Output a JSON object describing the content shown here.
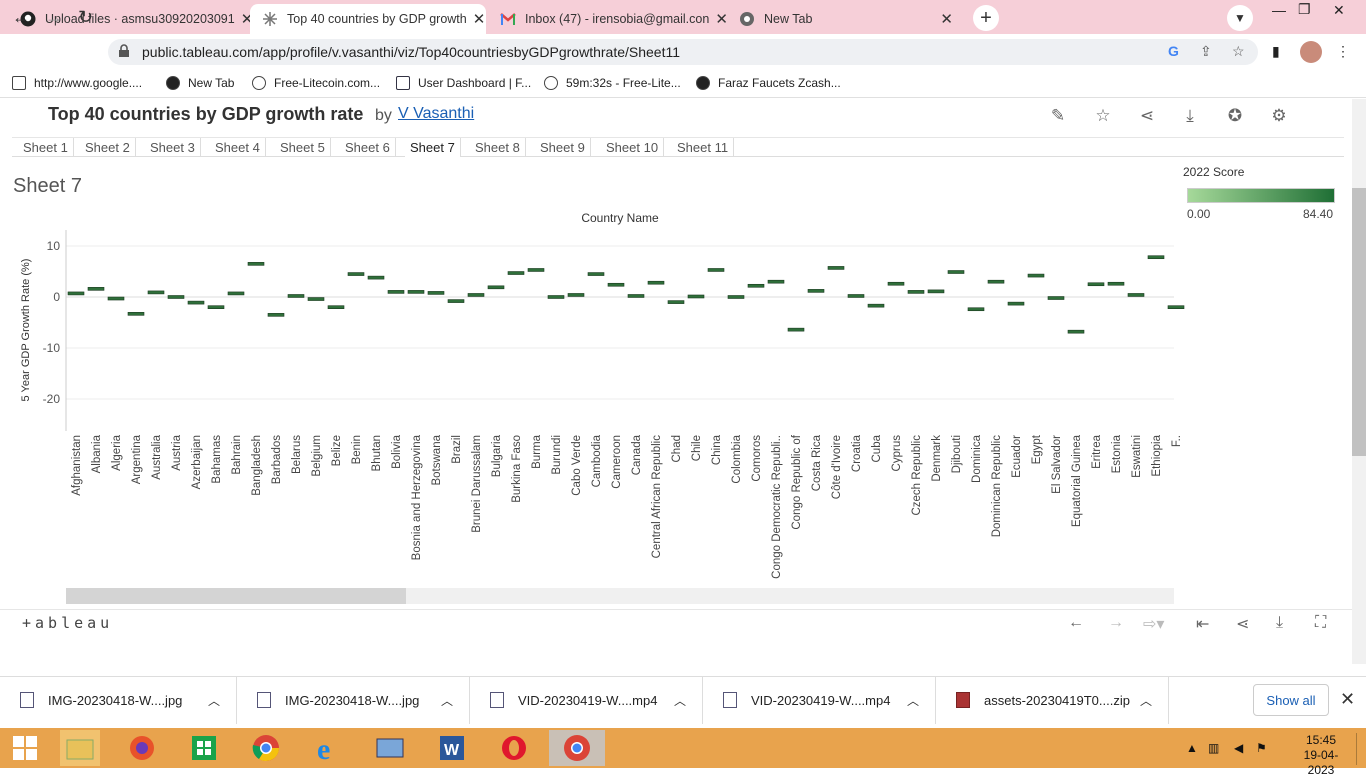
{
  "browser": {
    "tabs": [
      {
        "title": "Upload files · asmsu30920203091",
        "icon": "github-icon",
        "active": false
      },
      {
        "title": "Top 40 countries by GDP growth",
        "icon": "tableau-icon",
        "active": true
      },
      {
        "title": "Inbox (47) - irensobia@gmail.con",
        "icon": "gmail-icon",
        "active": false
      },
      {
        "title": "New Tab",
        "icon": "chrome-icon",
        "active": false
      }
    ],
    "new_tab_symbol": "+",
    "url": "public.tableau.com/app/profile/v.vasanthi/viz/Top40countriesbyGDPgrowthrate/Sheet11",
    "bookmarks": [
      "http://www.google....",
      "New Tab",
      "Free-Litecoin.com...",
      "User Dashboard | F...",
      "59m:32s - Free-Lite...",
      "Faraz Faucets Zcash..."
    ]
  },
  "viz": {
    "title": "Top 40 countries by GDP growth rate",
    "by": "by",
    "author": "V Vasanthi",
    "sheet_tabs": [
      "Sheet 1",
      "Sheet 2",
      "Sheet 3",
      "Sheet 4",
      "Sheet 5",
      "Sheet 6",
      "Sheet 7",
      "Sheet 8",
      "Sheet 9",
      "Sheet 10",
      "Sheet 11"
    ],
    "active_sheet": "Sheet 7",
    "sheet_name": "Sheet 7",
    "legend": {
      "title": "2022 Score",
      "min": "0.00",
      "max": "84.40",
      "color_low": "#a6d99a",
      "color_high": "#1f6f35"
    },
    "logo": "+ableau"
  },
  "chart_data": {
    "type": "scatter",
    "mark": "dash",
    "title": "",
    "xlabel": "Country Name",
    "ylabel": "5 Year GDP Growth Rate (%)",
    "ylim": [
      -25,
      12
    ],
    "yticks": [
      10,
      0,
      -10,
      -20
    ],
    "grid": true,
    "categories": [
      "Afghanistan",
      "Albania",
      "Algeria",
      "Argentina",
      "Australia",
      "Austria",
      "Azerbaijan",
      "Bahamas",
      "Bahrain",
      "Bangladesh",
      "Barbados",
      "Belarus",
      "Belgium",
      "Belize",
      "Benin",
      "Bhutan",
      "Bolivia",
      "Bosnia and Herzegovina",
      "Botswana",
      "Brazil",
      "Brunei Darussalam",
      "Bulgaria",
      "Burkina Faso",
      "Burma",
      "Burundi",
      "Cabo Verde",
      "Cambodia",
      "Cameroon",
      "Canada",
      "Central African Republic",
      "Chad",
      "Chile",
      "China",
      "Colombia",
      "Comoros",
      "Congo Democratic Republi..",
      "Congo Republic of",
      "Costa Rica",
      "Côte d'Ivoire",
      "Croatia",
      "Cuba",
      "Cyprus",
      "Czech Republic",
      "Denmark",
      "Djibouti",
      "Dominica",
      "Dominican Republic",
      "Ecuador",
      "Egypt",
      "El Salvador",
      "Equatorial Guinea",
      "Eritrea",
      "Estonia",
      "Eswatini",
      "Ethiopia",
      "F.."
    ],
    "values": [
      0.7,
      1.6,
      -0.3,
      -3.3,
      0.9,
      0.0,
      -1.1,
      -2.0,
      0.7,
      6.5,
      -3.5,
      0.2,
      -0.4,
      -2.0,
      4.5,
      3.8,
      1.0,
      1.0,
      0.8,
      -0.8,
      0.4,
      1.9,
      4.7,
      5.3,
      0.0,
      0.4,
      4.5,
      2.4,
      0.2,
      2.8,
      -1.0,
      0.1,
      5.3,
      0.0,
      2.2,
      3.0,
      -6.4,
      1.2,
      5.7,
      0.2,
      -1.7,
      2.6,
      1.0,
      1.1,
      4.9,
      -2.4,
      3.0,
      -1.3,
      4.2,
      -0.2,
      -6.8,
      2.5,
      2.6,
      0.4,
      7.8,
      -2.0
    ],
    "colors": "#2f6f3a"
  },
  "footer_icons": [
    "undo-icon",
    "redo-icon",
    "revert-icon",
    "reset-icon",
    "share-icon",
    "download-icon",
    "fullscreen-icon"
  ],
  "downloads": [
    "IMG-20230418-W....jpg",
    "IMG-20230418-W....jpg",
    "VID-20230419-W....mp4",
    "VID-20230419-W....mp4",
    "assets-20230419T0....zip"
  ],
  "show_all": "Show all",
  "taskbar": {
    "time": "15:45",
    "date": "19-04-2023"
  }
}
